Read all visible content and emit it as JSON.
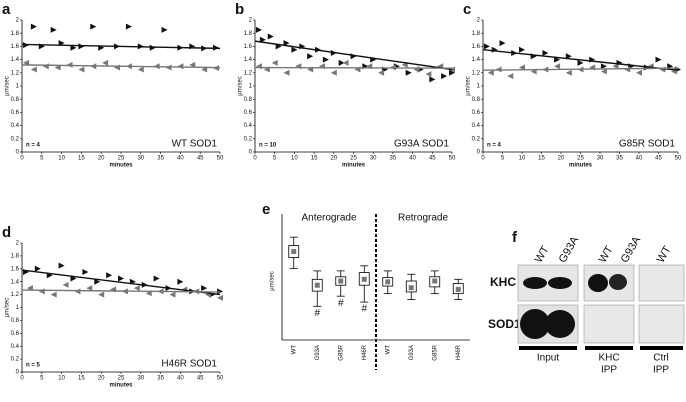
{
  "chart_data": [
    {
      "type": "scatter",
      "panel": "a",
      "xlabel": "minutes",
      "ylabel": "µm/sec",
      "n_label": "n = 4",
      "label": "WT SOD1",
      "xlim": [
        0,
        50
      ],
      "ylim": [
        0,
        2
      ],
      "xticks": [
        0,
        5,
        10,
        15,
        20,
        25,
        30,
        35,
        40,
        45,
        50
      ],
      "yticks": [
        0,
        0.2,
        0.4,
        0.6,
        0.8,
        1,
        1.2,
        1.4,
        1.6,
        1.8,
        2
      ],
      "series": [
        {
          "type": "scatter",
          "marker": "right",
          "color": "#111111",
          "x": [
            1,
            3,
            5,
            8,
            10,
            13,
            15,
            18,
            20,
            24,
            27,
            30,
            33,
            36,
            40,
            43,
            46,
            49
          ],
          "values": [
            1.62,
            1.9,
            1.6,
            1.85,
            1.65,
            1.58,
            1.6,
            1.9,
            1.58,
            1.6,
            1.9,
            1.6,
            1.58,
            1.85,
            1.58,
            1.6,
            1.57,
            1.58
          ]
        },
        {
          "type": "scatter",
          "marker": "left",
          "color": "#777777",
          "x": [
            1,
            3,
            6,
            9,
            12,
            15,
            18,
            21,
            24,
            27,
            30,
            34,
            37,
            40,
            43,
            46,
            49
          ],
          "values": [
            1.35,
            1.25,
            1.3,
            1.28,
            1.32,
            1.25,
            1.3,
            1.35,
            1.28,
            1.3,
            1.25,
            1.3,
            1.28,
            1.3,
            1.32,
            1.25,
            1.27
          ]
        },
        {
          "type": "line",
          "color": "#111111",
          "x": [
            0,
            50
          ],
          "values": [
            1.63,
            1.57
          ]
        },
        {
          "type": "line",
          "color": "#777777",
          "x": [
            0,
            50
          ],
          "values": [
            1.32,
            1.28
          ]
        }
      ]
    },
    {
      "type": "scatter",
      "panel": "b",
      "xlabel": "minutes",
      "ylabel": "µm/sec",
      "n_label": "n = 10",
      "label": "G93A SOD1",
      "xlim": [
        0,
        50
      ],
      "ylim": [
        0,
        2
      ],
      "xticks": [
        0,
        5,
        10,
        15,
        20,
        25,
        30,
        35,
        40,
        45,
        50
      ],
      "yticks": [
        0,
        0.2,
        0.4,
        0.6,
        0.8,
        1,
        1.2,
        1.4,
        1.6,
        1.8,
        2
      ],
      "series": [
        {
          "type": "scatter",
          "marker": "right",
          "color": "#111111",
          "x": [
            1,
            2,
            4,
            6,
            8,
            10,
            12,
            14,
            16,
            18,
            20,
            22,
            25,
            28,
            30,
            33,
            36,
            39,
            42,
            45,
            48,
            50
          ],
          "values": [
            1.85,
            1.7,
            1.75,
            1.6,
            1.65,
            1.55,
            1.6,
            1.45,
            1.55,
            1.4,
            1.5,
            1.35,
            1.45,
            1.3,
            1.4,
            1.25,
            1.3,
            1.2,
            1.25,
            1.1,
            1.15,
            1.2
          ]
        },
        {
          "type": "scatter",
          "marker": "left",
          "color": "#777777",
          "x": [
            1,
            3,
            5,
            8,
            11,
            14,
            17,
            20,
            23,
            26,
            29,
            32,
            35,
            38,
            41,
            44,
            47,
            50
          ],
          "values": [
            1.3,
            1.25,
            1.35,
            1.2,
            1.3,
            1.25,
            1.3,
            1.2,
            1.35,
            1.25,
            1.3,
            1.2,
            1.28,
            1.32,
            1.25,
            1.18,
            1.3,
            1.25
          ]
        },
        {
          "type": "line",
          "color": "#111111",
          "x": [
            0,
            50
          ],
          "values": [
            1.68,
            1.25
          ]
        },
        {
          "type": "line",
          "color": "#777777",
          "x": [
            0,
            50
          ],
          "values": [
            1.28,
            1.27
          ]
        }
      ]
    },
    {
      "type": "scatter",
      "panel": "c",
      "xlabel": "minutes",
      "ylabel": "µm/sec",
      "n_label": "n = 4",
      "label": "G85R SOD1",
      "xlim": [
        0,
        50
      ],
      "ylim": [
        0,
        2
      ],
      "xticks": [
        0,
        5,
        10,
        15,
        20,
        25,
        30,
        35,
        40,
        45,
        50
      ],
      "yticks": [
        0,
        0.2,
        0.4,
        0.6,
        0.8,
        1,
        1.2,
        1.4,
        1.6,
        1.8,
        2
      ],
      "series": [
        {
          "type": "scatter",
          "marker": "right",
          "color": "#111111",
          "x": [
            1,
            3,
            5,
            8,
            10,
            13,
            16,
            19,
            22,
            25,
            28,
            31,
            35,
            38,
            42,
            45,
            48,
            50
          ],
          "values": [
            1.6,
            1.55,
            1.65,
            1.5,
            1.55,
            1.45,
            1.5,
            1.4,
            1.45,
            1.35,
            1.4,
            1.3,
            1.35,
            1.3,
            1.28,
            1.4,
            1.3,
            1.25
          ]
        },
        {
          "type": "scatter",
          "marker": "left",
          "color": "#777777",
          "x": [
            2,
            4,
            7,
            10,
            13,
            16,
            19,
            22,
            25,
            28,
            31,
            34,
            37,
            40,
            43,
            46,
            49
          ],
          "values": [
            1.2,
            1.25,
            1.15,
            1.28,
            1.22,
            1.25,
            1.3,
            1.2,
            1.25,
            1.28,
            1.22,
            1.3,
            1.25,
            1.2,
            1.3,
            1.25,
            1.22
          ]
        },
        {
          "type": "line",
          "color": "#111111",
          "x": [
            0,
            50
          ],
          "values": [
            1.55,
            1.24
          ]
        },
        {
          "type": "line",
          "color": "#777777",
          "x": [
            0,
            50
          ],
          "values": [
            1.24,
            1.27
          ]
        }
      ]
    },
    {
      "type": "scatter",
      "panel": "d",
      "xlabel": "minutes",
      "ylabel": "µm/sec",
      "n_label": "n = 5",
      "label": "H46R SOD1",
      "xlim": [
        0,
        50
      ],
      "ylim": [
        0,
        2
      ],
      "xticks": [
        0,
        5,
        10,
        15,
        20,
        25,
        30,
        35,
        40,
        45,
        50
      ],
      "yticks": [
        0,
        0.2,
        0.4,
        0.6,
        0.8,
        1,
        1.2,
        1.4,
        1.6,
        1.8,
        2
      ],
      "series": [
        {
          "type": "scatter",
          "marker": "right",
          "color": "#111111",
          "x": [
            1,
            4,
            7,
            10,
            13,
            16,
            19,
            22,
            25,
            28,
            31,
            34,
            37,
            40,
            43,
            46,
            48,
            50
          ],
          "values": [
            1.55,
            1.6,
            1.5,
            1.65,
            1.45,
            1.55,
            1.4,
            1.5,
            1.45,
            1.4,
            1.35,
            1.45,
            1.3,
            1.4,
            1.25,
            1.3,
            1.2,
            1.25
          ]
        },
        {
          "type": "scatter",
          "marker": "left",
          "color": "#777777",
          "x": [
            2,
            5,
            8,
            11,
            14,
            17,
            20,
            23,
            26,
            29,
            32,
            35,
            38,
            41,
            44,
            47,
            50
          ],
          "values": [
            1.3,
            1.25,
            1.2,
            1.35,
            1.25,
            1.3,
            1.2,
            1.28,
            1.25,
            1.3,
            1.22,
            1.25,
            1.2,
            1.28,
            1.25,
            1.2,
            1.15
          ]
        },
        {
          "type": "line",
          "color": "#111111",
          "x": [
            0,
            50
          ],
          "values": [
            1.58,
            1.2
          ]
        },
        {
          "type": "line",
          "color": "#777777",
          "x": [
            0,
            50
          ],
          "values": [
            1.27,
            1.24
          ]
        }
      ]
    },
    {
      "type": "box",
      "panel": "e",
      "ylabel": "µm/sec",
      "ylim": [
        0.6,
        2.0
      ],
      "groups": [
        {
          "label": "Anterograde",
          "categories": [
            "WT",
            "G93A",
            "G85R",
            "H46R"
          ],
          "sig": [
            null,
            "#",
            "#",
            "#"
          ],
          "boxes": [
            {
              "low": 1.45,
              "q1": 1.58,
              "median": 1.65,
              "q3": 1.72,
              "high": 1.82
            },
            {
              "low": 1.0,
              "q1": 1.18,
              "median": 1.25,
              "q3": 1.32,
              "high": 1.42
            },
            {
              "low": 1.12,
              "q1": 1.25,
              "median": 1.3,
              "q3": 1.35,
              "high": 1.42
            },
            {
              "low": 1.05,
              "q1": 1.25,
              "median": 1.32,
              "q3": 1.4,
              "high": 1.48
            }
          ]
        },
        {
          "label": "Retrograde",
          "categories": [
            "WT",
            "G93A",
            "G85R",
            "H46R"
          ],
          "boxes": [
            {
              "low": 1.15,
              "q1": 1.24,
              "median": 1.29,
              "q3": 1.34,
              "high": 1.42
            },
            {
              "low": 1.08,
              "q1": 1.17,
              "median": 1.22,
              "q3": 1.3,
              "high": 1.38
            },
            {
              "low": 1.15,
              "q1": 1.23,
              "median": 1.3,
              "q3": 1.35,
              "high": 1.42
            },
            {
              "low": 1.08,
              "q1": 1.15,
              "median": 1.2,
              "q3": 1.27,
              "high": 1.32
            }
          ]
        }
      ]
    }
  ],
  "blot": {
    "panel": "f",
    "lanes": [
      "WT",
      "G93A",
      "WT",
      "G93A",
      "WT"
    ],
    "rows": [
      "KHC",
      "SOD1"
    ],
    "groups": [
      [
        "Input"
      ],
      [
        "KHC",
        "IPP"
      ],
      [
        "Ctrl",
        "IPP"
      ]
    ]
  }
}
